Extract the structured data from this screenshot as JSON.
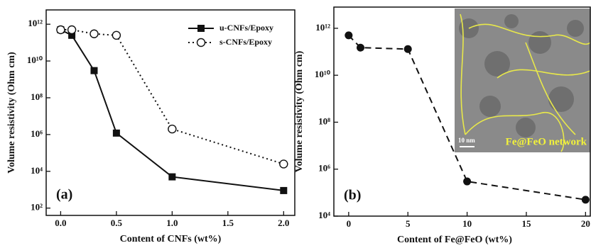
{
  "chart_data": [
    {
      "type": "line",
      "log_y": true,
      "x_label": "Content of CNFs (wt%)",
      "y_label": "Volume resistivity (Ohm cm)",
      "annotation": "(a)",
      "xlim": [
        -0.13,
        2.1
      ],
      "xticks": [
        {
          "value": 0,
          "label": "0.0"
        },
        {
          "value": 0.5,
          "label": "0.5"
        },
        {
          "value": 1,
          "label": "1.0"
        },
        {
          "value": 1.5,
          "label": "1.5"
        },
        {
          "value": 2,
          "label": "2.0"
        }
      ],
      "ylim": [
        40,
        6000000000000
      ],
      "yticks": [
        {
          "value": 100,
          "label": "10²"
        },
        {
          "value": 10000,
          "label": "10⁴"
        },
        {
          "value": 1000000,
          "label": "10⁶"
        },
        {
          "value": 100000000,
          "label": "10⁸"
        },
        {
          "value": 10000000000,
          "label": "10¹⁰"
        },
        {
          "value": 1000000000000,
          "label": "10¹²"
        }
      ],
      "legend": "upper right",
      "x": [
        0,
        0.1,
        0.3,
        0.5,
        1.0,
        2.0
      ],
      "series": [
        {
          "name": "u-CNFs/Epoxy",
          "color": "#111111",
          "marker": "square",
          "dash": "solid",
          "values": [
            500000000000,
            250000000000,
            3000000000,
            1200000,
            5000,
            900
          ]
        },
        {
          "name": "s-CNFs/Epoxy",
          "color": "#111111",
          "marker": "open-circle",
          "dash": "dotted",
          "values": [
            500000000000,
            500000000000,
            300000000000,
            250000000000,
            2000000,
            25000
          ]
        }
      ]
    },
    {
      "type": "line",
      "log_y": true,
      "x_label": "Content of Fe@FeO (wt%)",
      "y_label": "Volume resistivity (Ohm cm)",
      "annotation": "(b)",
      "inset_label": "Fe@FeO network",
      "inset_scale": "10 nm",
      "xlim": [
        -1.25,
        20.4
      ],
      "xticks": [
        0,
        5,
        10,
        15,
        20
      ],
      "ylim": [
        10000,
        8000000000000
      ],
      "yticks": [
        {
          "value": 10000,
          "label": "10⁴"
        },
        {
          "value": 1000000,
          "label": "10⁶"
        },
        {
          "value": 100000000,
          "label": "10⁸"
        },
        {
          "value": 10000000000,
          "label": "10¹⁰"
        },
        {
          "value": 1000000000000,
          "label": "10¹²"
        }
      ],
      "x": [
        0,
        1,
        5,
        10,
        20
      ],
      "series": [
        {
          "color": "#111111",
          "marker": "circle",
          "dash": "dashed",
          "values": [
            500000000000,
            150000000000,
            130000000000,
            300000,
            50000
          ]
        }
      ]
    }
  ]
}
